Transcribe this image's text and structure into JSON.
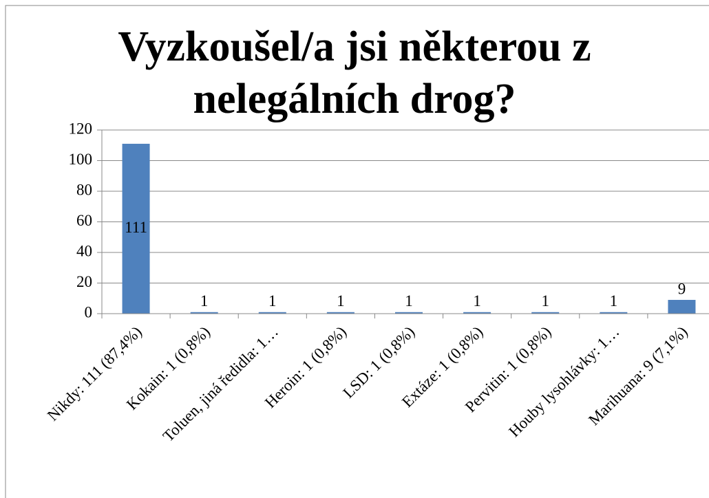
{
  "chart_data": {
    "type": "bar",
    "title": "Vyzkoušel/a jsi některou z nelegálních drog?",
    "categories": [
      "Nikdy: 111 (87,4%)",
      "Kokain: 1 (0,8%)",
      "Toluen, jiná ředidla: 1…",
      "Heroin: 1 (0,8%)",
      "LSD: 1 (0,8%)",
      "Extáze: 1 (0,8%)",
      "Pervitin: 1 (0,8%)",
      "Houby lysohlávky: 1…",
      "Marihuana: 9 (7,1%)"
    ],
    "values": [
      111,
      1,
      1,
      1,
      1,
      1,
      1,
      1,
      9
    ],
    "color": "#4f81bd",
    "ylim": [
      0,
      120
    ],
    "yticks": [
      0,
      20,
      40,
      60,
      80,
      100,
      120
    ],
    "grid": true
  }
}
